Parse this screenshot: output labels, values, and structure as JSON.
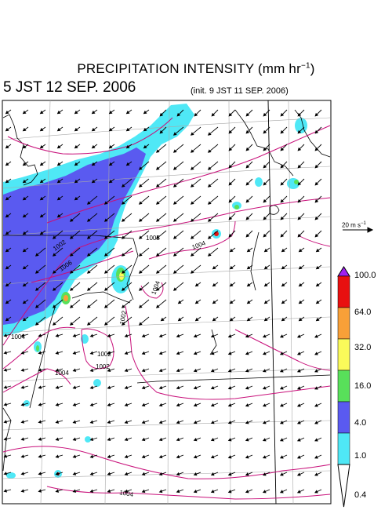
{
  "header": {
    "title": "PRECIPITATION INTENSITY (mm hr",
    "title_sup": "−1",
    "title_end": ")",
    "valid_time": "5 JST 12 SEP. 2006",
    "init_time": "(init. 9 JST 11 SEP. 2006)"
  },
  "wind_reference": {
    "label": "20 m s",
    "label_sup": "−1"
  },
  "colorbar": {
    "levels": [
      "0.4",
      "1.0",
      "4.0",
      "16.0",
      "32.0",
      "64.0",
      "100.0"
    ],
    "colors": [
      "#4fe8f6",
      "#5a5af0",
      "#58e05a",
      "#fafa5a",
      "#f8a038",
      "#e81010",
      "#a020f0"
    ],
    "under_color": "#ffffff"
  },
  "isobars": {
    "color": "#c8107a",
    "labels": [
      "1002",
      "1006",
      "1005",
      "1004",
      "1002",
      "1004",
      "1002",
      "1004",
      "1004",
      "1002",
      "1004"
    ]
  },
  "map": {
    "coastline_color": "#000000",
    "grid_color": "#a8a8a8",
    "wind_vector_color": "#000000"
  }
}
